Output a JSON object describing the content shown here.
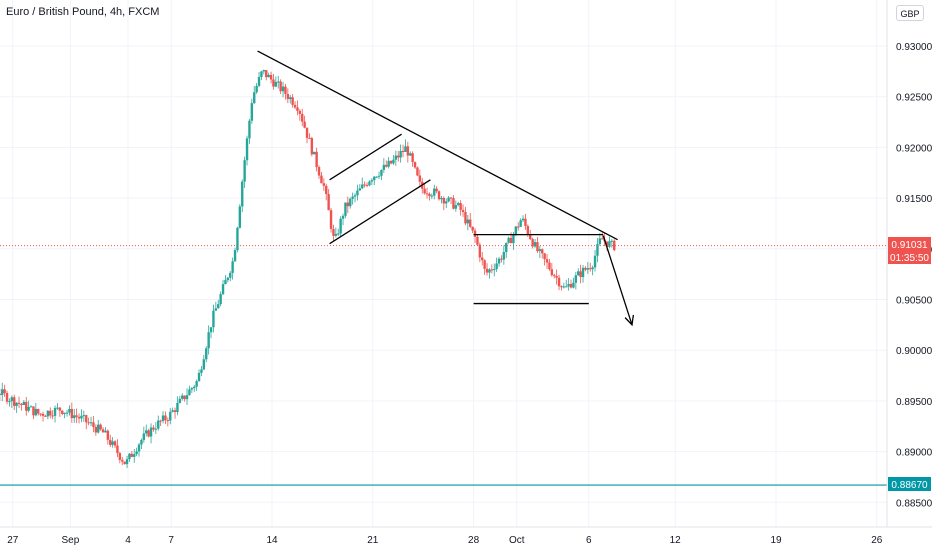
{
  "header": {
    "title": "Euro / British Pound, 4h, FXCM",
    "currency": "GBP"
  },
  "chart_data": {
    "type": "candlestick",
    "symbol": "Euro / British Pound",
    "timeframe": "4h",
    "source": "FXCM",
    "ylim": [
      0.8827,
      0.9345
    ],
    "y_ticks": [
      "0.93000",
      "0.92500",
      "0.92000",
      "0.91500",
      "0.91000",
      "0.90500",
      "0.90000",
      "0.89500",
      "0.89000",
      "0.88500"
    ],
    "x_ticks": [
      "27",
      "Sep",
      "4",
      "7",
      "14",
      "21",
      "28",
      "Oct",
      "6",
      "12",
      "19",
      "26"
    ],
    "price_labels": {
      "last_price": "0.91031",
      "countdown": "01:35:50",
      "horizontal_line": "0.88670"
    },
    "colors": {
      "up": "#26a69a",
      "down": "#ef5350",
      "hline": "#0097a7",
      "drawing": "#000000",
      "price_line": "#ef5350"
    },
    "drawings": [
      {
        "kind": "descending trendline",
        "from": [
          "Sep 13",
          0.9295
        ],
        "to": [
          "Oct 8",
          0.9109
        ]
      },
      {
        "kind": "channel upper",
        "from": [
          "Sep 18",
          0.9168
        ],
        "to": [
          "Sep 23",
          0.9213
        ]
      },
      {
        "kind": "channel lower",
        "from": [
          "Sep 18",
          0.9105
        ],
        "to": [
          "Sep 25",
          0.9168
        ]
      },
      {
        "kind": "range top",
        "from": [
          "Sep 28",
          0.9114
        ],
        "to": [
          "Oct 7",
          0.9114
        ]
      },
      {
        "kind": "range bottom",
        "from": [
          "Sep 28",
          0.9046
        ],
        "to": [
          "Oct 6",
          0.9046
        ]
      },
      {
        "kind": "projected move",
        "from": [
          "Oct 7",
          0.9113
        ],
        "to": [
          "Oct 9",
          0.9025
        ]
      }
    ],
    "horizontal_line": 0.8867,
    "last_price": 0.91031
  }
}
